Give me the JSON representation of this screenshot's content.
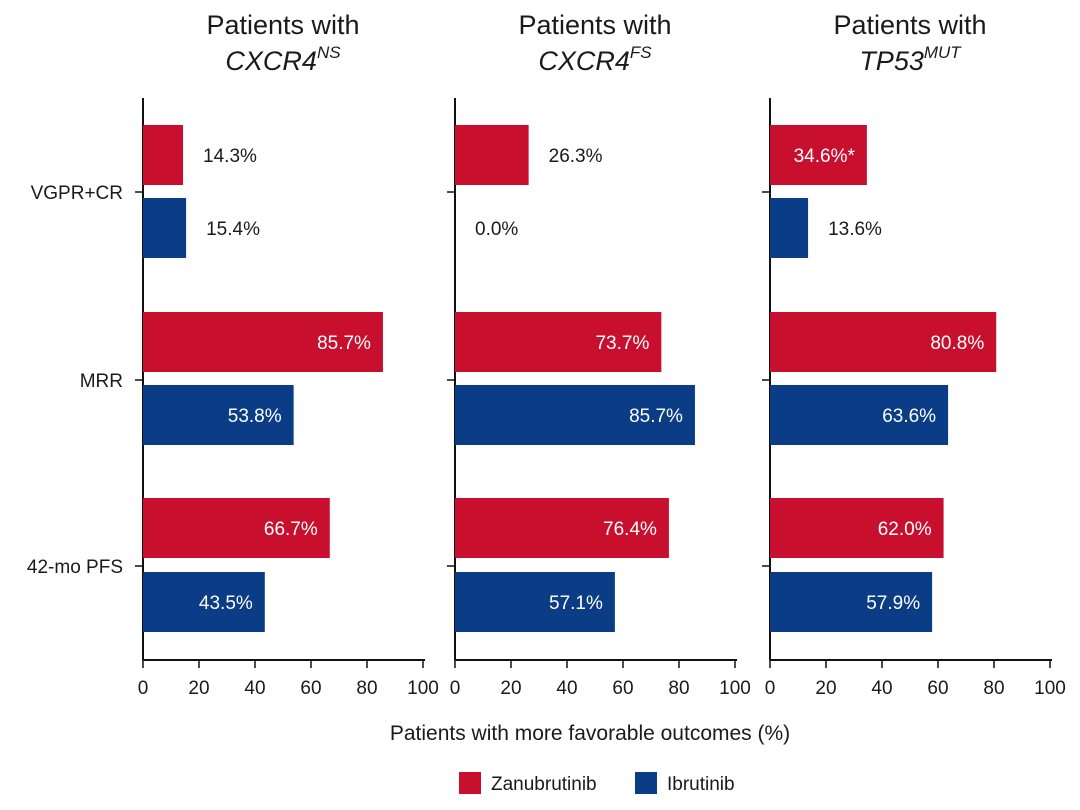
{
  "chart_data": {
    "type": "bar",
    "orientation": "horizontal",
    "xlabel": "Patients with more favorable outcomes (%)",
    "xlim": [
      0,
      100
    ],
    "xticks": [
      0,
      20,
      40,
      60,
      80,
      100
    ],
    "categories": [
      "VGPR+CR",
      "MRR",
      "42-mo PFS"
    ],
    "legend": {
      "placement": "bottom",
      "entries": [
        {
          "name": "Zanubrutinib",
          "color": "#c8102e"
        },
        {
          "name": "Ibrutinib",
          "color": "#0b3d86"
        }
      ]
    },
    "panels": [
      {
        "title_line1": "Patients with",
        "title_gene": "CXCR4",
        "title_sup": "NS",
        "series": [
          {
            "name": "Zanubrutinib",
            "values": [
              14.3,
              85.7,
              66.7
            ],
            "labels": [
              "14.3%",
              "85.7%",
              "66.7%"
            ]
          },
          {
            "name": "Ibrutinib",
            "values": [
              15.4,
              53.8,
              43.5
            ],
            "labels": [
              "15.4%",
              "53.8%",
              "43.5%"
            ]
          }
        ]
      },
      {
        "title_line1": "Patients with",
        "title_gene": "CXCR4",
        "title_sup": "FS",
        "series": [
          {
            "name": "Zanubrutinib",
            "values": [
              26.3,
              73.7,
              76.4
            ],
            "labels": [
              "26.3%",
              "73.7%",
              "76.4%"
            ]
          },
          {
            "name": "Ibrutinib",
            "values": [
              0.0,
              85.7,
              57.1
            ],
            "labels": [
              "0.0%",
              "85.7%",
              "57.1%"
            ]
          }
        ]
      },
      {
        "title_line1": "Patients with",
        "title_gene": "TP53",
        "title_sup": "MUT",
        "series": [
          {
            "name": "Zanubrutinib",
            "values": [
              34.6,
              80.8,
              62.0
            ],
            "labels": [
              "34.6%*",
              "80.8%",
              "62.0%"
            ]
          },
          {
            "name": "Ibrutinib",
            "values": [
              13.6,
              63.6,
              57.9
            ],
            "labels": [
              "13.6%",
              "63.6%",
              "57.9%"
            ]
          }
        ]
      }
    ]
  }
}
